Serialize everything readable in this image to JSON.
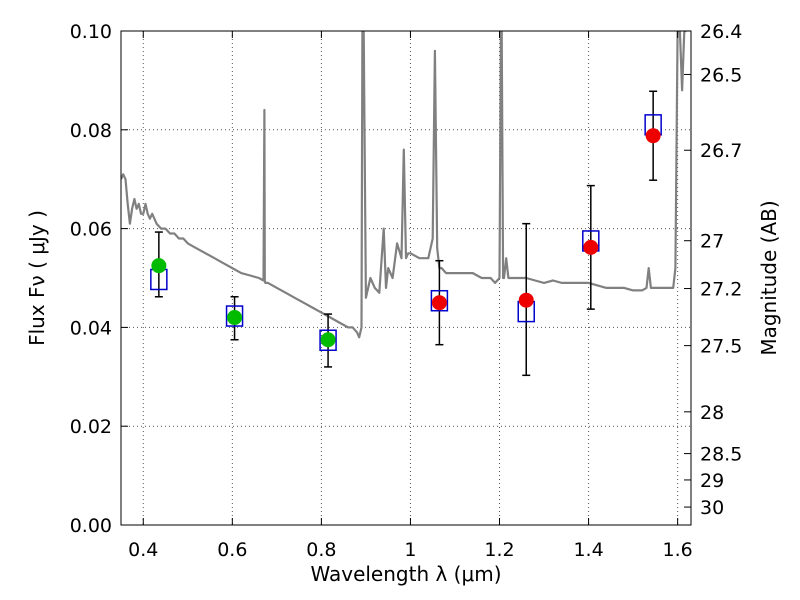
{
  "chart_data": {
    "type": "scatter",
    "title": "",
    "xlabel": "Wavelength  λ (μm)",
    "ylabel": "Flux  Fν  ( μJy )",
    "y2label": "Magnitude (AB)",
    "xlim": [
      0.35,
      1.63
    ],
    "ylim": [
      0.0,
      0.1
    ],
    "grid": true,
    "x_ticks": [
      0.4,
      0.6,
      0.8,
      1.0,
      1.2,
      1.4,
      1.6
    ],
    "x_tick_labels": [
      "0.4",
      "0.6",
      "0.8",
      "1",
      "1.2",
      "1.4",
      "1.6"
    ],
    "y_ticks": [
      0.0,
      0.02,
      0.04,
      0.06,
      0.08,
      0.1
    ],
    "y_tick_labels": [
      "0.00",
      "0.02",
      "0.04",
      "0.06",
      "0.08",
      "0.10"
    ],
    "y2_ticks": [
      26.4,
      26.5,
      26.7,
      27,
      27.2,
      27.5,
      28,
      28.5,
      29,
      30
    ],
    "y2_tick_labels": [
      "26.4",
      "26.5",
      "26.7",
      "27",
      "27.2",
      "27.5",
      "28",
      "28.5",
      "29",
      "30"
    ],
    "colors": {
      "model": "#808080",
      "model_photometry": "#0000cc",
      "detection": "#00bb00",
      "observed_nir": "#ee0000",
      "errorbar": "#000000",
      "grid": "#555555"
    },
    "series": [
      {
        "kind": "model_spectrum",
        "x": [
          0.35,
          0.355,
          0.36,
          0.365,
          0.37,
          0.375,
          0.38,
          0.385,
          0.39,
          0.395,
          0.4,
          0.405,
          0.41,
          0.415,
          0.42,
          0.43,
          0.44,
          0.45,
          0.46,
          0.47,
          0.48,
          0.49,
          0.5,
          0.52,
          0.54,
          0.56,
          0.58,
          0.6,
          0.62,
          0.64,
          0.66,
          0.67,
          0.672,
          0.673,
          0.674,
          0.676,
          0.68,
          0.7,
          0.72,
          0.74,
          0.76,
          0.78,
          0.8,
          0.82,
          0.84,
          0.86,
          0.87,
          0.88,
          0.885,
          0.89,
          0.892,
          0.895,
          0.9,
          0.91,
          0.92,
          0.93,
          0.94,
          0.945,
          0.95,
          0.96,
          0.97,
          0.98,
          0.985,
          0.99,
          0.995,
          1.0,
          1.02,
          1.04,
          1.05,
          1.055,
          1.06,
          1.065,
          1.07,
          1.08,
          1.1,
          1.12,
          1.14,
          1.16,
          1.18,
          1.19,
          1.2,
          1.203,
          1.205,
          1.208,
          1.21,
          1.215,
          1.22,
          1.24,
          1.26,
          1.28,
          1.3,
          1.32,
          1.34,
          1.36,
          1.38,
          1.4,
          1.42,
          1.44,
          1.46,
          1.48,
          1.5,
          1.52,
          1.53,
          1.535,
          1.54,
          1.56,
          1.58,
          1.59,
          1.595,
          1.6,
          1.605,
          1.61,
          1.615,
          1.62
        ],
        "y": [
          0.07,
          0.071,
          0.07,
          0.065,
          0.061,
          0.064,
          0.066,
          0.064,
          0.065,
          0.063,
          0.063,
          0.065,
          0.063,
          0.062,
          0.063,
          0.061,
          0.06,
          0.06,
          0.059,
          0.059,
          0.058,
          0.058,
          0.057,
          0.056,
          0.055,
          0.054,
          0.053,
          0.052,
          0.051,
          0.0505,
          0.05,
          0.0495,
          0.084,
          0.0495,
          0.049,
          0.049,
          0.049,
          0.048,
          0.047,
          0.046,
          0.045,
          0.044,
          0.043,
          0.042,
          0.041,
          0.04,
          0.04,
          0.039,
          0.038,
          0.04,
          0.1,
          0.1,
          0.046,
          0.05,
          0.048,
          0.047,
          0.06,
          0.048,
          0.052,
          0.05,
          0.057,
          0.054,
          0.076,
          0.054,
          0.055,
          0.055,
          0.054,
          0.054,
          0.058,
          0.096,
          0.056,
          0.052,
          0.052,
          0.051,
          0.051,
          0.051,
          0.051,
          0.05,
          0.05,
          0.049,
          0.05,
          0.1,
          0.1,
          0.05,
          0.05,
          0.054,
          0.05,
          0.05,
          0.05,
          0.0495,
          0.049,
          0.0495,
          0.049,
          0.049,
          0.049,
          0.049,
          0.0485,
          0.048,
          0.048,
          0.048,
          0.0475,
          0.0475,
          0.048,
          0.052,
          0.048,
          0.048,
          0.048,
          0.048,
          0.052,
          0.1,
          0.1,
          0.088,
          0.1,
          0.1
        ]
      },
      {
        "kind": "model_photometry",
        "x": [
          0.435,
          0.605,
          0.815,
          1.065,
          1.26,
          1.405,
          1.545
        ],
        "y": [
          0.0497,
          0.0423,
          0.0374,
          0.0454,
          0.0432,
          0.0575,
          0.081
        ]
      },
      {
        "kind": "detection",
        "x": [
          0.435,
          0.605,
          0.815
        ],
        "y": [
          0.0525,
          0.042,
          0.0375
        ],
        "yerr": [
          [
            0.0063,
            0.0068
          ],
          [
            0.0045,
            0.0042
          ],
          [
            0.0055,
            0.0052
          ]
        ]
      },
      {
        "kind": "observed_nir",
        "x": [
          1.065,
          1.26,
          1.405,
          1.545
        ],
        "y": [
          0.045,
          0.0455,
          0.0562,
          0.0788
        ],
        "yerr": [
          [
            0.0085,
            0.0085
          ],
          [
            0.0152,
            0.0155
          ],
          [
            0.0125,
            0.0125
          ],
          [
            0.009,
            0.009
          ]
        ]
      }
    ]
  }
}
